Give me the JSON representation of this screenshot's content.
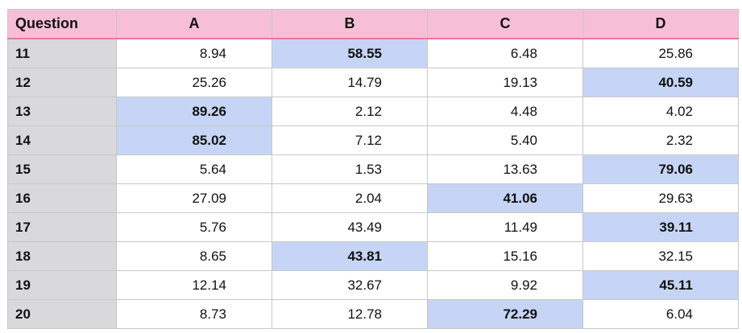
{
  "table": {
    "headers": [
      "Question",
      "A",
      "B",
      "C",
      "D"
    ],
    "highlight_color": "#c6d5f5",
    "header_color": "#f6bfd7",
    "rows": [
      {
        "question": "11",
        "values": [
          "8.94",
          "58.55",
          "6.48",
          "25.86"
        ],
        "highlighted": 1
      },
      {
        "question": "12",
        "values": [
          "25.26",
          "14.79",
          "19.13",
          "40.59"
        ],
        "highlighted": 3
      },
      {
        "question": "13",
        "values": [
          "89.26",
          "2.12",
          "4.48",
          "4.02"
        ],
        "highlighted": 0
      },
      {
        "question": "14",
        "values": [
          "85.02",
          "7.12",
          "5.40",
          "2.32"
        ],
        "highlighted": 0
      },
      {
        "question": "15",
        "values": [
          "5.64",
          "1.53",
          "13.63",
          "79.06"
        ],
        "highlighted": 3
      },
      {
        "question": "16",
        "values": [
          "27.09",
          "2.04",
          "41.06",
          "29.63"
        ],
        "highlighted": 2
      },
      {
        "question": "17",
        "values": [
          "5.76",
          "43.49",
          "11.49",
          "39.11"
        ],
        "highlighted": 3
      },
      {
        "question": "18",
        "values": [
          "8.65",
          "43.81",
          "15.16",
          "32.15"
        ],
        "highlighted": 1
      },
      {
        "question": "19",
        "values": [
          "12.14",
          "32.67",
          "9.92",
          "45.11"
        ],
        "highlighted": 3
      },
      {
        "question": "20",
        "values": [
          "8.73",
          "12.78",
          "72.29",
          "6.04"
        ],
        "highlighted": 2
      }
    ]
  }
}
